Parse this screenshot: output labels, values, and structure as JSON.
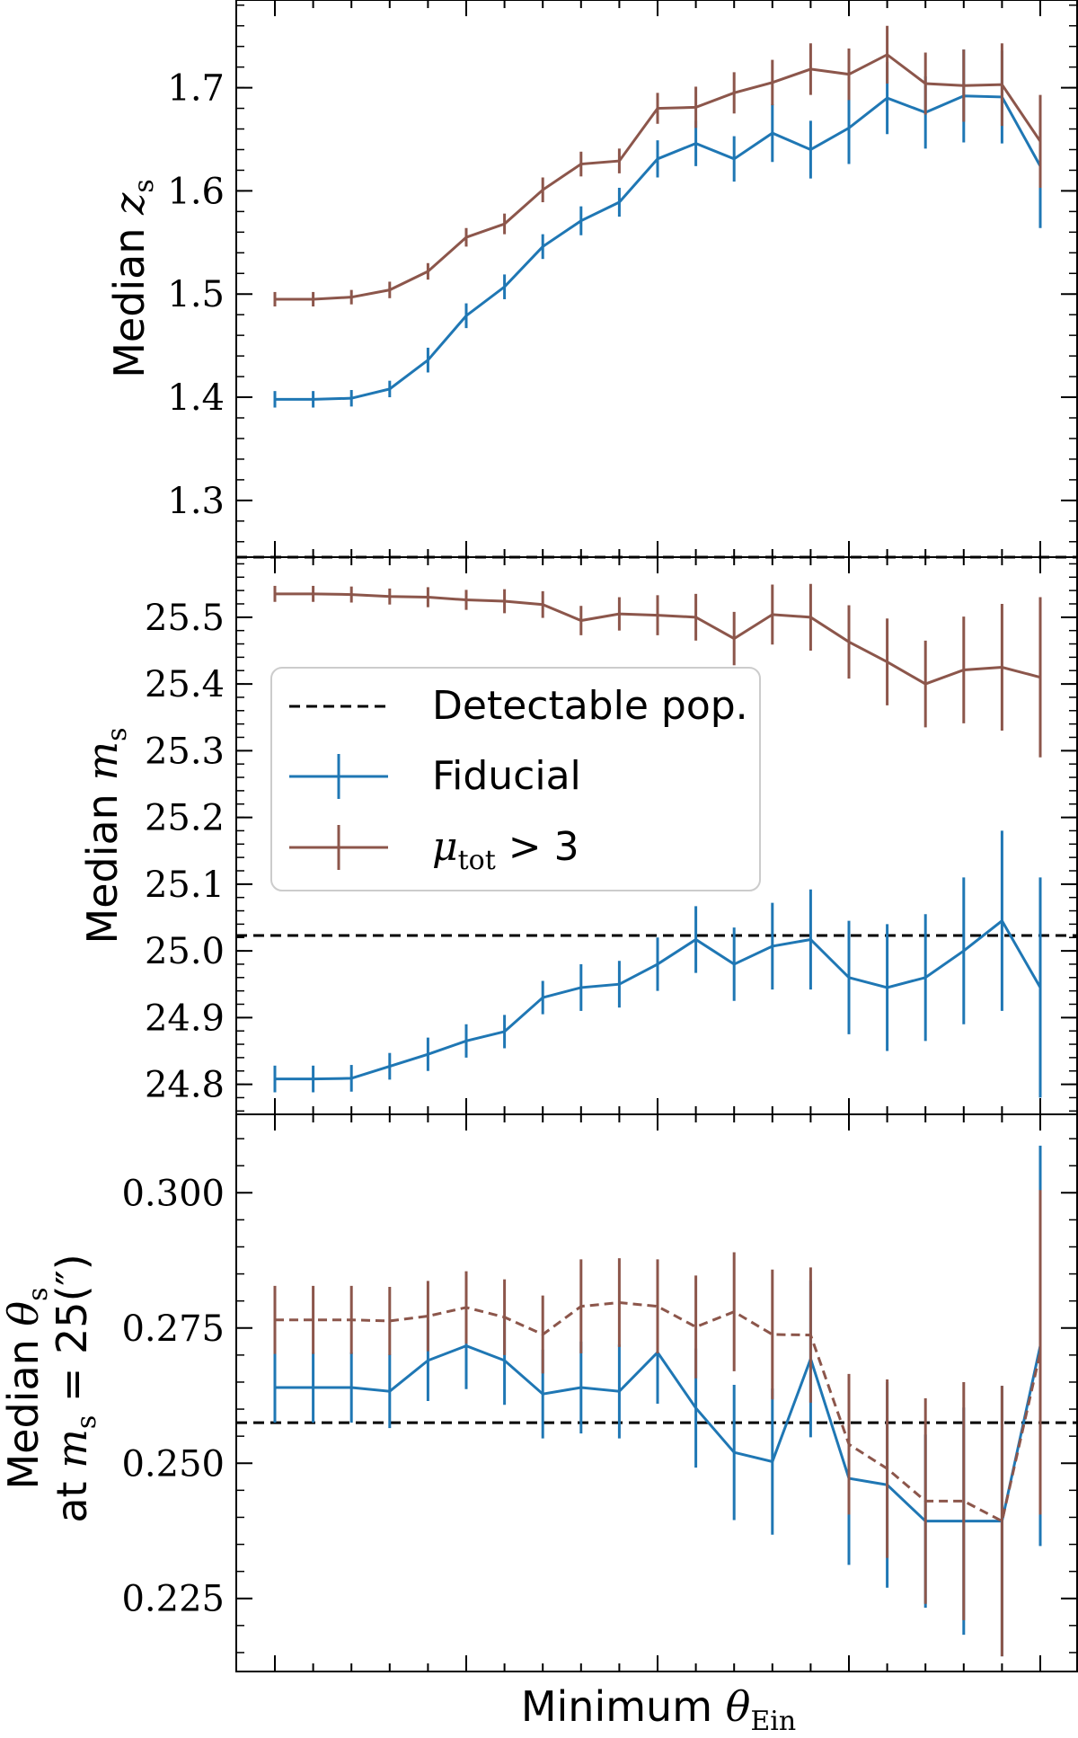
{
  "chart_data": [
    {
      "type": "line",
      "panel": "top",
      "ylabel_prefix": "Median ",
      "ylabel_symbol": "z",
      "ylabel_sub": "s",
      "ylim": [
        1.245,
        1.785
      ],
      "yticks": [
        "1.3",
        "1.4",
        "1.5",
        "1.6",
        "1.7"
      ],
      "ytick_values": [
        1.3,
        1.4,
        1.5,
        1.6,
        1.7
      ],
      "hline": 1.245,
      "x": [
        0,
        1,
        2,
        3,
        4,
        5,
        6,
        7,
        8,
        9,
        10,
        11,
        12,
        13,
        14,
        15,
        16,
        17,
        18,
        19,
        20
      ],
      "series": [
        {
          "name": "Fiducial",
          "color": "#1f77b4",
          "dashed": false,
          "values": [
            1.398,
            1.398,
            1.399,
            1.408,
            1.436,
            1.479,
            1.507,
            1.546,
            1.571,
            1.589,
            1.631,
            1.646,
            1.631,
            1.656,
            1.64,
            1.661,
            1.69,
            1.676,
            1.692,
            1.691,
            1.624
          ],
          "errors": [
            0.008,
            0.008,
            0.008,
            0.008,
            0.012,
            0.012,
            0.012,
            0.012,
            0.014,
            0.014,
            0.018,
            0.022,
            0.022,
            0.028,
            0.028,
            0.035,
            0.035,
            0.035,
            0.045,
            0.045,
            0.06
          ]
        },
        {
          "name": "mu_tot > 3",
          "color": "#8c564b",
          "dashed": false,
          "values": [
            1.495,
            1.495,
            1.497,
            1.504,
            1.522,
            1.555,
            1.568,
            1.601,
            1.626,
            1.629,
            1.68,
            1.681,
            1.695,
            1.705,
            1.718,
            1.713,
            1.732,
            1.704,
            1.702,
            1.703,
            1.648
          ],
          "errors": [
            0.007,
            0.007,
            0.007,
            0.008,
            0.008,
            0.009,
            0.01,
            0.012,
            0.012,
            0.012,
            0.015,
            0.02,
            0.02,
            0.022,
            0.025,
            0.025,
            0.028,
            0.03,
            0.035,
            0.04,
            0.045
          ]
        }
      ]
    },
    {
      "type": "line",
      "panel": "middle",
      "ylabel_prefix": "Median ",
      "ylabel_symbol": "m",
      "ylabel_sub": "s",
      "ylim": [
        24.755,
        25.59
      ],
      "yticks": [
        "24.8",
        "24.9",
        "25.0",
        "25.1",
        "25.2",
        "25.3",
        "25.4",
        "25.5"
      ],
      "ytick_values": [
        24.8,
        24.9,
        25.0,
        25.1,
        25.2,
        25.3,
        25.4,
        25.5
      ],
      "hline": 25.023,
      "x": [
        0,
        1,
        2,
        3,
        4,
        5,
        6,
        7,
        8,
        9,
        10,
        11,
        12,
        13,
        14,
        15,
        16,
        17,
        18,
        19,
        20
      ],
      "series": [
        {
          "name": "Fiducial",
          "color": "#1f77b4",
          "dashed": false,
          "values": [
            24.808,
            24.808,
            24.809,
            24.827,
            24.845,
            24.865,
            24.879,
            24.93,
            24.945,
            24.95,
            24.98,
            25.017,
            24.98,
            25.007,
            25.017,
            24.96,
            24.945,
            24.96,
            25.0,
            25.045,
            24.945
          ],
          "errors": [
            0.02,
            0.02,
            0.02,
            0.02,
            0.025,
            0.025,
            0.025,
            0.025,
            0.035,
            0.035,
            0.04,
            0.05,
            0.055,
            0.065,
            0.075,
            0.085,
            0.095,
            0.095,
            0.11,
            0.135,
            0.165
          ]
        },
        {
          "name": "mu_tot > 3",
          "color": "#8c564b",
          "dashed": false,
          "values": [
            25.535,
            25.535,
            25.534,
            25.531,
            25.53,
            25.526,
            25.524,
            25.519,
            25.495,
            25.505,
            25.503,
            25.5,
            25.468,
            25.504,
            25.5,
            25.463,
            25.433,
            25.4,
            25.421,
            25.425,
            25.41
          ],
          "errors": [
            0.012,
            0.012,
            0.012,
            0.012,
            0.015,
            0.015,
            0.018,
            0.02,
            0.022,
            0.025,
            0.03,
            0.035,
            0.04,
            0.045,
            0.05,
            0.055,
            0.065,
            0.065,
            0.08,
            0.095,
            0.12
          ]
        }
      ],
      "legend": {
        "placement": "center-left",
        "entries": [
          "Detectable pop.",
          "Fiducial",
          "mu_tot > 3"
        ]
      }
    },
    {
      "type": "line",
      "panel": "bottom",
      "ylabel_line1_prefix": "Median ",
      "ylabel_line1_symbol": "θ",
      "ylabel_line1_sub": "s",
      "ylabel_line2_prefix": "at ",
      "ylabel_line2_symbol": "m",
      "ylabel_line2_sub": "s",
      "ylabel_line2_rest": " = 25(″)",
      "ylim": [
        0.2115,
        0.3145
      ],
      "yticks": [
        "0.225",
        "0.250",
        "0.275",
        "0.300"
      ],
      "ytick_values": [
        0.225,
        0.25,
        0.275,
        0.3
      ],
      "hline": 0.2575,
      "x": [
        0,
        1,
        2,
        3,
        4,
        5,
        6,
        7,
        8,
        9,
        10,
        11,
        12,
        13,
        14,
        15,
        16,
        17,
        18,
        19,
        20
      ],
      "series": [
        {
          "name": "Fiducial",
          "color": "#1f77b4",
          "dashed": false,
          "values": [
            0.264,
            0.264,
            0.264,
            0.2633,
            0.269,
            0.2717,
            0.269,
            0.2628,
            0.264,
            0.2633,
            0.2705,
            0.2602,
            0.252,
            0.2503,
            0.2693,
            0.2472,
            0.246,
            0.2393,
            0.2393,
            0.2393,
            0.2717
          ],
          "errors": [
            0.0065,
            0.0065,
            0.0065,
            0.0068,
            0.0075,
            0.008,
            0.0082,
            0.0082,
            0.0085,
            0.0087,
            0.0095,
            0.011,
            0.0125,
            0.0135,
            0.0145,
            0.016,
            0.019,
            0.016,
            0.021,
            0.025,
            0.037
          ]
        },
        {
          "name": "mu_tot > 3",
          "color": "#8c564b",
          "dashed": true,
          "values": [
            0.2765,
            0.2765,
            0.2765,
            0.2763,
            0.2772,
            0.2788,
            0.277,
            0.2738,
            0.279,
            0.2797,
            0.279,
            0.2752,
            0.278,
            0.2738,
            0.2737,
            0.2535,
            0.249,
            0.243,
            0.243,
            0.2393,
            0.2705
          ],
          "errors": [
            0.0063,
            0.0063,
            0.0063,
            0.0063,
            0.0065,
            0.0067,
            0.007,
            0.0072,
            0.0087,
            0.0082,
            0.0087,
            0.0095,
            0.011,
            0.012,
            0.0125,
            0.013,
            0.0165,
            0.019,
            0.022,
            0.025,
            0.03
          ]
        }
      ],
      "xlabel_prefix": "Minimum ",
      "xlabel_symbol": "θ",
      "xlabel_sub": "Ein"
    }
  ],
  "legend": {
    "detectable_label": "Detectable pop.",
    "fiducial_label": "Fiducial",
    "mu_symbol": "μ",
    "mu_sub": "tot",
    "mu_rest": " > 3"
  },
  "colors": {
    "fiducial": "#1f77b4",
    "mu": "#8c564b",
    "detectable": "#000000"
  }
}
